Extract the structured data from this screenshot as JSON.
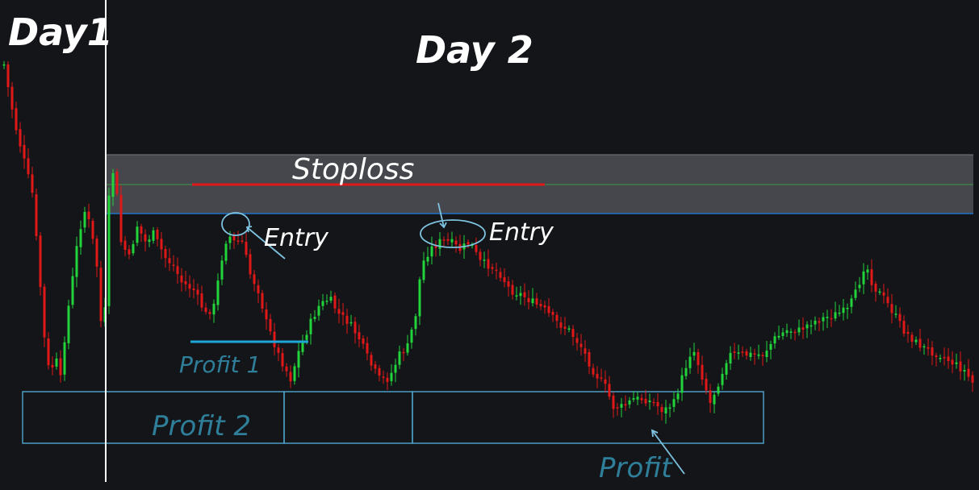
{
  "labels": {
    "day1": "Day1",
    "day2": "Day 2",
    "stoploss": "Stoploss",
    "entry1": "Entry",
    "entry2": "Entry",
    "profit1": "Profit 1",
    "profit2": "Profit 2",
    "profit3": "Profit"
  },
  "colors": {
    "background": "#131519",
    "bullish": "#22d33a",
    "bearish": "#e01818",
    "zone_fill": "#4b4c50",
    "zone_border": "#1e73c8",
    "annotation_blue": "#4a9ec4",
    "annotation_text_blue": "#2f7f9a",
    "stoploss_line": "#e01818",
    "profit1_line": "#1fa7d8",
    "divider": "#ffffff"
  },
  "chart_data": {
    "type": "candlestick",
    "series_description_hidden": false,
    "y_range": [
      0,
      100
    ],
    "x_range": [
      0,
      200
    ],
    "day_boundary_index": 21,
    "stoploss_zone": {
      "top": 82,
      "bottom": 63
    },
    "stoploss_level": 72.5,
    "profit1_level": 34,
    "profit_zone": {
      "top": 21,
      "bottom": 10
    },
    "candles": []
  }
}
